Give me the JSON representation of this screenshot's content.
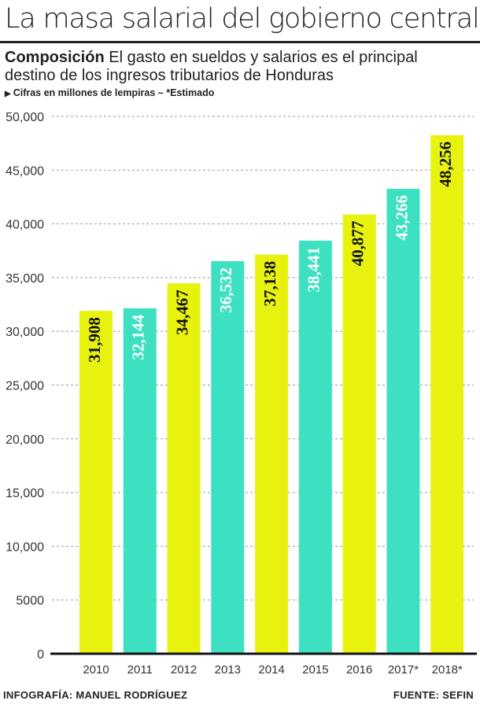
{
  "header": {
    "title": "La masa salarial del  gobierno central",
    "subtitle_bold": "Composición",
    "subtitle_text": "El gasto en sueldos y salarios es el principal destino de los ingresos tributarios de Honduras",
    "note": "Cifras en millones de lempiras – *Estimado"
  },
  "footer": {
    "credit": "INFOGRAFÍA: MANUEL RODRÍGUEZ",
    "source": "FUENTE: SEFIN"
  },
  "colors": {
    "lime": "#e8f20f",
    "teal": "#3ee0c2",
    "grid": "#9a9a9a",
    "axis": "#111111",
    "label_dark": "#111111",
    "label_light": "#ffffff"
  },
  "chart_data": {
    "type": "bar",
    "title": "",
    "xlabel": "",
    "ylabel": "",
    "categories": [
      "2010",
      "2011",
      "2012",
      "2013",
      "2014",
      "2015",
      "2016",
      "2017*",
      "2018*"
    ],
    "values": [
      31908,
      32144,
      34467,
      36532,
      37138,
      38441,
      40877,
      43266,
      48256
    ],
    "value_labels": [
      "31,908",
      "32,144",
      "34,467",
      "36,532",
      "37,138",
      "38,441",
      "40,877",
      "43,266",
      "48,256"
    ],
    "bar_colors": [
      "lime",
      "teal",
      "lime",
      "teal",
      "lime",
      "teal",
      "lime",
      "teal",
      "lime"
    ],
    "ylim": [
      0,
      50000
    ],
    "yticks": [
      0,
      5000,
      10000,
      15000,
      20000,
      25000,
      30000,
      35000,
      40000,
      45000,
      50000
    ],
    "ytick_labels": [
      "0",
      "5000",
      "10,000",
      "15,000",
      "20,000",
      "25,000",
      "30,000",
      "35,000",
      "40,000",
      "45,000",
      "50,000"
    ],
    "grid": true,
    "grid_style": "dashed",
    "legend": "none"
  }
}
